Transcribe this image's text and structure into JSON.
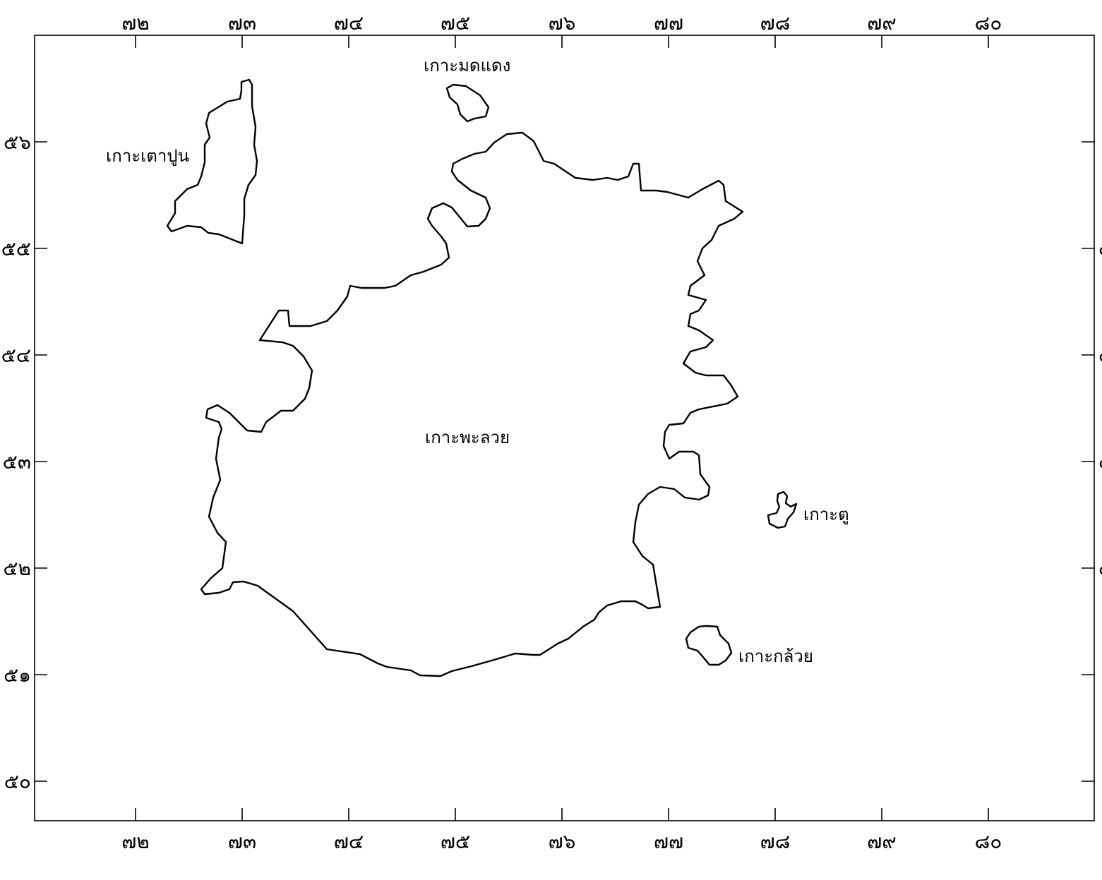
{
  "map": {
    "x_ticks": [
      "๗๒",
      "๗๓",
      "๗๔",
      "๗๕",
      "๗๖",
      "๗๗",
      "๗๘",
      "๗๙",
      "๘๐"
    ],
    "y_ticks": [
      "๕๖",
      "๕๕",
      "๕๔",
      "๕๓",
      "๕๒",
      "๕๑",
      "๕๐"
    ],
    "labels": {
      "ko_mot_daeng": "เกาะมดแดง",
      "ko_tao_pun": "เกาะเตาปูน",
      "ko_phaluai": "เกาะพะลวย",
      "ko_tu": "เกาะตู",
      "ko_kluai": "เกาะกล้วย"
    },
    "colors": {
      "ink": "#000000",
      "paper": "#ffffff"
    }
  }
}
